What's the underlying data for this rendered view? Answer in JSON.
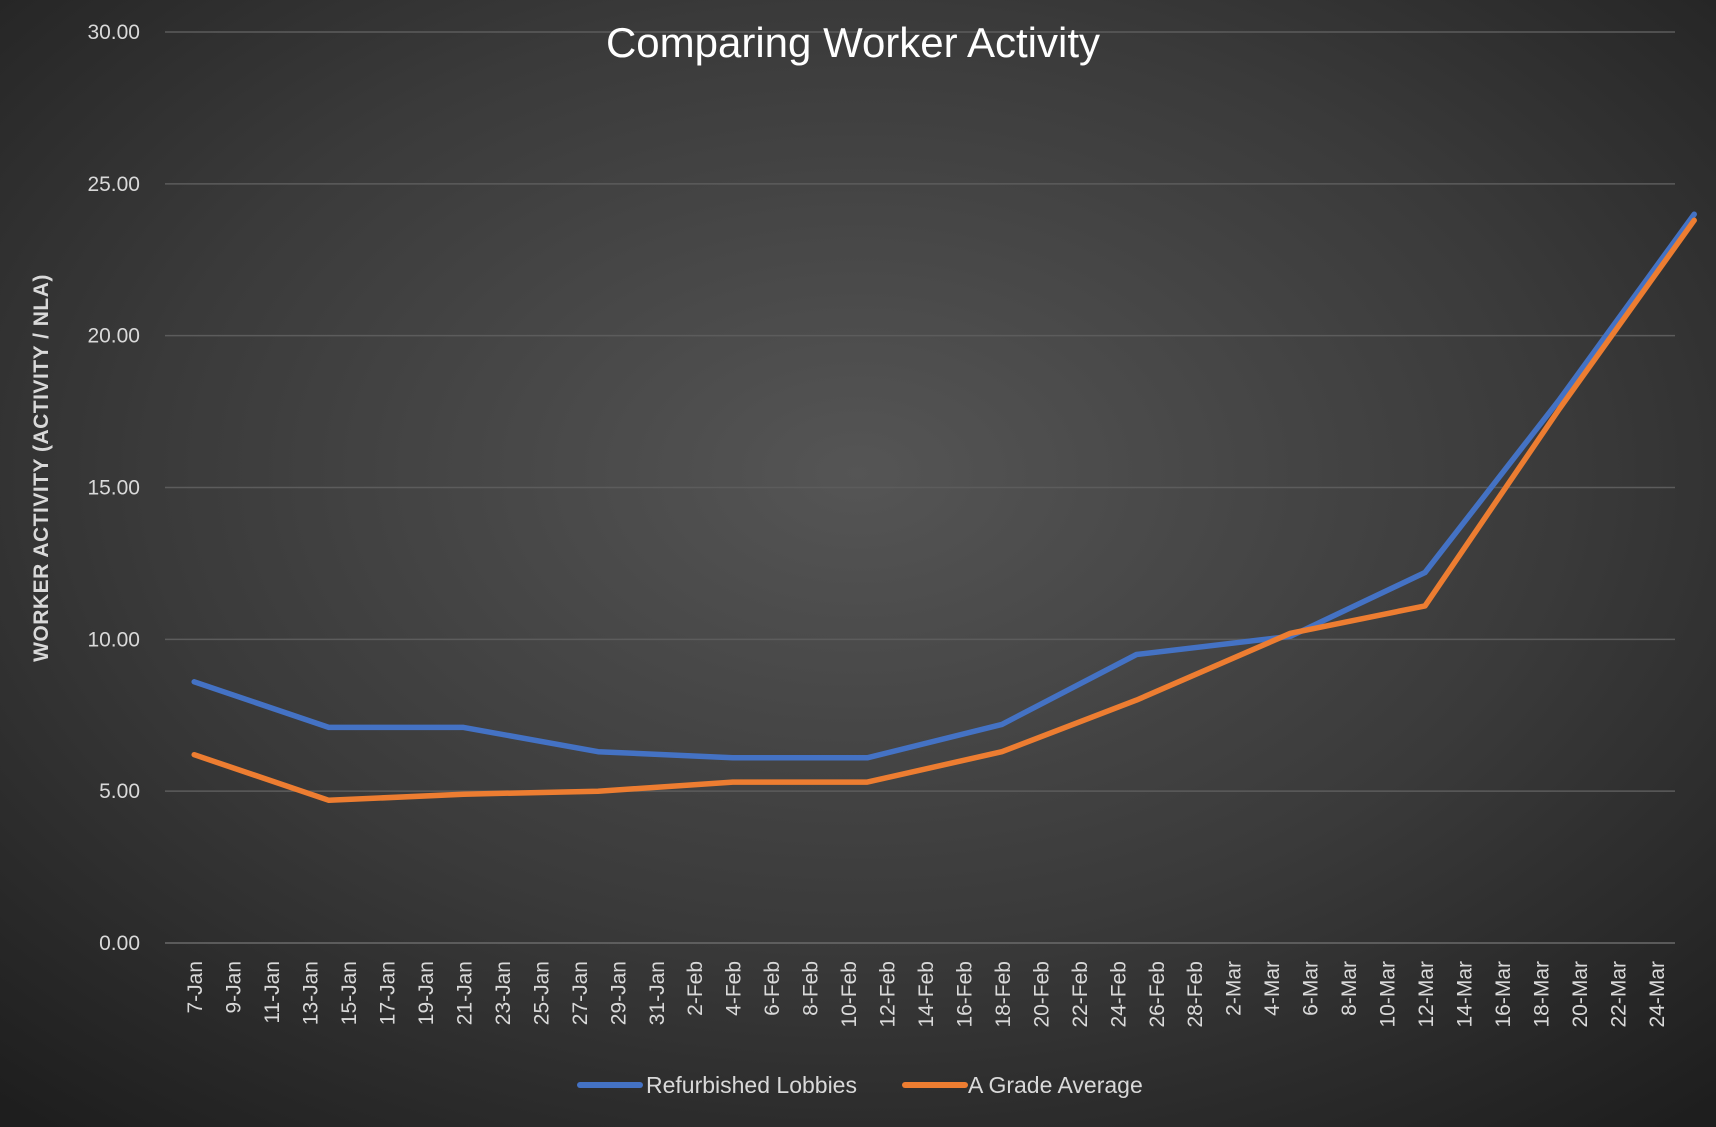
{
  "chart_data": {
    "type": "line",
    "title": "Comparing Worker Activity",
    "ylabel": "WORKER ACTIVITY (ACTIVITY / NLA)",
    "xlabel": "",
    "ylim": [
      0,
      30
    ],
    "yticks": [
      "0.00",
      "5.00",
      "10.00",
      "15.00",
      "20.00",
      "25.00",
      "30.00"
    ],
    "ytick_values": [
      0,
      5,
      10,
      15,
      20,
      25,
      30
    ],
    "grid": true,
    "legend_position": "bottom",
    "x": [
      "7-Jan",
      "9-Jan",
      "11-Jan",
      "13-Jan",
      "15-Jan",
      "17-Jan",
      "19-Jan",
      "21-Jan",
      "23-Jan",
      "25-Jan",
      "27-Jan",
      "29-Jan",
      "31-Jan",
      "2-Feb",
      "4-Feb",
      "6-Feb",
      "8-Feb",
      "10-Feb",
      "12-Feb",
      "14-Feb",
      "16-Feb",
      "18-Feb",
      "20-Feb",
      "22-Feb",
      "24-Feb",
      "26-Feb",
      "28-Feb",
      "2-Mar",
      "4-Mar",
      "6-Mar",
      "8-Mar",
      "10-Mar",
      "12-Mar",
      "14-Mar",
      "16-Mar",
      "18-Mar",
      "20-Mar",
      "22-Mar",
      "24-Mar"
    ],
    "series": [
      {
        "name": "Refurbished Lobbies",
        "color": "#4472c4",
        "points": [
          {
            "x": "7-Jan",
            "y": 8.6
          },
          {
            "x": "14-Jan",
            "y": 7.1
          },
          {
            "x": "21-Jan",
            "y": 7.1
          },
          {
            "x": "28-Jan",
            "y": 6.3
          },
          {
            "x": "4-Feb",
            "y": 6.1
          },
          {
            "x": "11-Feb",
            "y": 6.1
          },
          {
            "x": "18-Feb",
            "y": 7.2
          },
          {
            "x": "25-Feb",
            "y": 9.5
          },
          {
            "x": "4-Mar",
            "y": 10.1
          },
          {
            "x": "11-Mar",
            "y": 12.2
          },
          {
            "x": "18-Mar",
            "y": 17.9
          },
          {
            "x": "25-Mar",
            "y": 24.0
          }
        ]
      },
      {
        "name": "A Grade Average",
        "color": "#ed7d31",
        "points": [
          {
            "x": "7-Jan",
            "y": 6.2
          },
          {
            "x": "14-Jan",
            "y": 4.7
          },
          {
            "x": "21-Jan",
            "y": 4.9
          },
          {
            "x": "28-Jan",
            "y": 5.0
          },
          {
            "x": "4-Feb",
            "y": 5.3
          },
          {
            "x": "11-Feb",
            "y": 5.3
          },
          {
            "x": "18-Feb",
            "y": 6.3
          },
          {
            "x": "25-Feb",
            "y": 8.0
          },
          {
            "x": "4-Mar",
            "y": 10.2
          },
          {
            "x": "11-Mar",
            "y": 11.1
          },
          {
            "x": "18-Mar",
            "y": 17.6
          },
          {
            "x": "25-Mar",
            "y": 23.8
          }
        ]
      }
    ]
  }
}
